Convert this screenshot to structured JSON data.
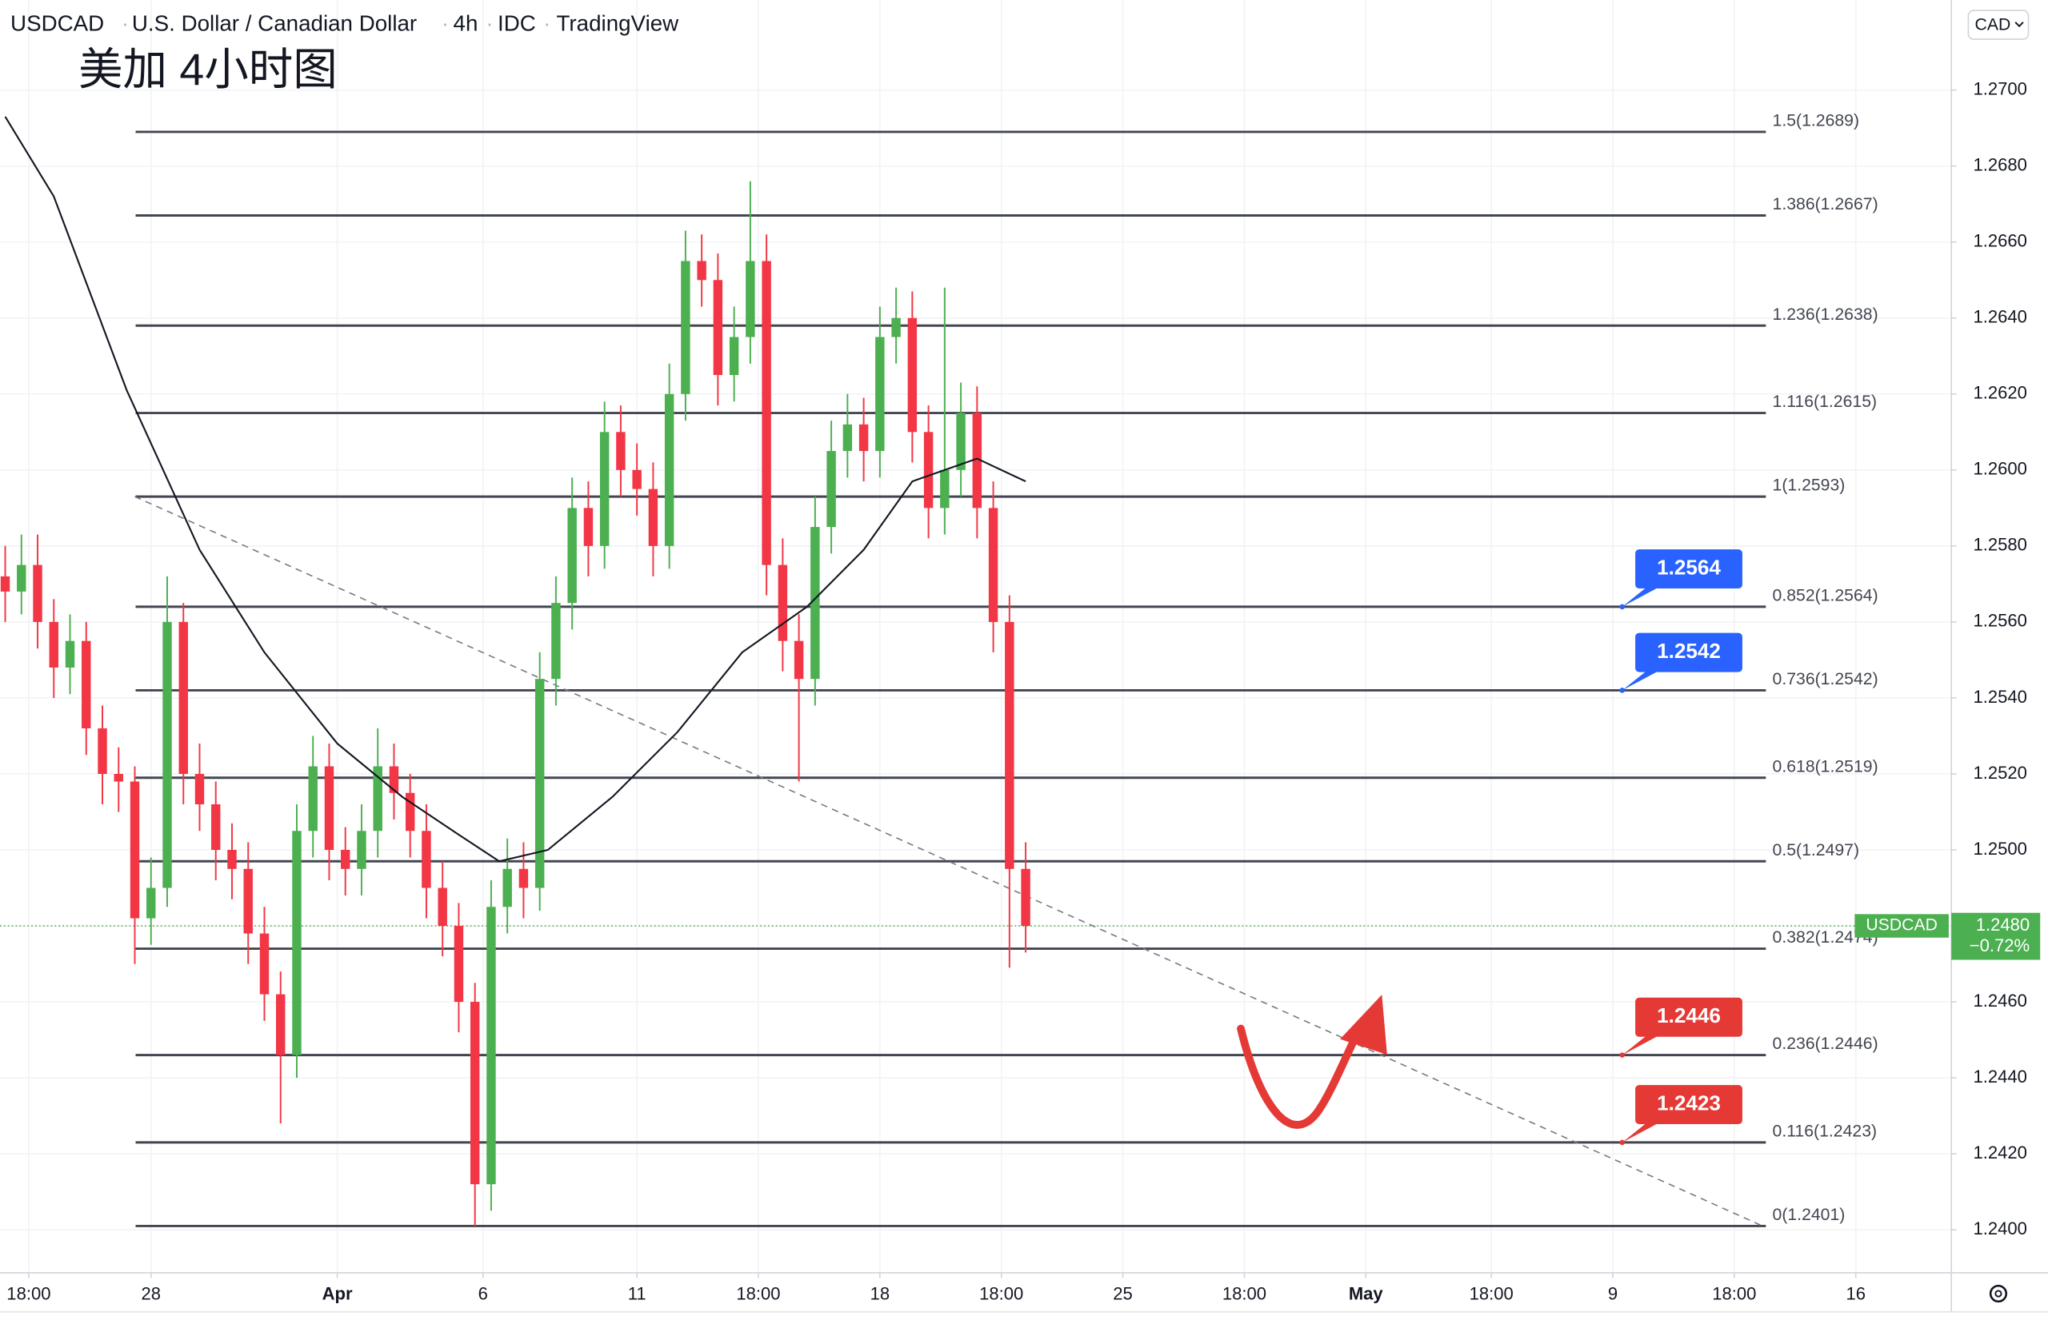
{
  "header": {
    "symbol": "USDCAD",
    "name": "U.S. Dollar / Canadian Dollar",
    "interval": "4h",
    "source": "IDC",
    "platform": "TradingView"
  },
  "annotation_title": "美加 4小时图",
  "currency": "CAD",
  "chart_data": {
    "type": "candlestick",
    "up_color": "#4caf50",
    "down_color": "#f23645",
    "x": [
      0,
      2,
      4,
      6,
      8,
      10,
      12,
      14,
      16,
      18,
      20,
      22,
      24,
      26,
      28,
      30,
      32,
      34,
      36,
      38,
      40,
      42,
      44,
      46,
      48,
      50,
      52,
      54,
      56,
      58,
      60,
      62,
      64,
      66,
      68,
      70,
      72,
      74,
      76,
      78,
      80,
      82,
      84,
      86,
      88,
      90,
      92,
      94,
      96,
      98,
      100,
      102,
      104,
      106,
      108,
      110,
      112,
      114,
      116,
      118,
      120,
      122,
      124,
      126
    ],
    "open": [
      1.2572,
      1.2568,
      1.2575,
      1.256,
      1.2548,
      1.2555,
      1.2532,
      1.252,
      1.2518,
      1.2482,
      1.249,
      1.256,
      1.252,
      1.2512,
      1.25,
      1.2495,
      1.2478,
      1.2462,
      1.2446,
      1.2505,
      1.2522,
      1.25,
      1.2495,
      1.2505,
      1.2522,
      1.2515,
      1.2505,
      1.249,
      1.248,
      1.246,
      1.2412,
      1.2485,
      1.2495,
      1.249,
      1.2545,
      1.2565,
      1.259,
      1.258,
      1.261,
      1.26,
      1.2595,
      1.258,
      1.262,
      1.2655,
      1.265,
      1.2625,
      1.2635,
      1.2655,
      1.2575,
      1.2555,
      1.2545,
      1.2585,
      1.2605,
      1.2612,
      1.2605,
      1.2635,
      1.264,
      1.261,
      1.259,
      1.26,
      1.2615,
      1.259,
      1.256,
      1.2495
    ],
    "high": [
      1.258,
      1.2583,
      1.2583,
      1.2566,
      1.2562,
      1.256,
      1.2538,
      1.2527,
      1.2522,
      1.2498,
      1.2572,
      1.2565,
      1.2528,
      1.2518,
      1.2507,
      1.2502,
      1.2485,
      1.2468,
      1.2512,
      1.253,
      1.2528,
      1.2506,
      1.2512,
      1.2532,
      1.2528,
      1.252,
      1.2512,
      1.2497,
      1.2486,
      1.2465,
      1.2492,
      1.2503,
      1.2502,
      1.2552,
      1.2572,
      1.2598,
      1.2597,
      1.2618,
      1.2617,
      1.2607,
      1.2602,
      1.2628,
      1.2663,
      1.2662,
      1.2657,
      1.2643,
      1.2676,
      1.2662,
      1.2582,
      1.2562,
      1.2593,
      1.2613,
      1.262,
      1.2619,
      1.2643,
      1.2648,
      1.2647,
      1.2617,
      1.2648,
      1.2623,
      1.2622,
      1.2597,
      1.2567,
      1.2502
    ],
    "low": [
      1.256,
      1.2562,
      1.2553,
      1.254,
      1.2541,
      1.2525,
      1.2512,
      1.251,
      1.247,
      1.2475,
      1.2485,
      1.2512,
      1.2505,
      1.2492,
      1.2487,
      1.247,
      1.2455,
      1.2428,
      1.244,
      1.2498,
      1.2492,
      1.2488,
      1.2488,
      1.2498,
      1.2508,
      1.2498,
      1.2482,
      1.2472,
      1.2452,
      1.2401,
      1.2405,
      1.2478,
      1.2482,
      1.2484,
      1.2538,
      1.2558,
      1.2572,
      1.2574,
      1.2593,
      1.2588,
      1.2572,
      1.2574,
      1.2613,
      1.2643,
      1.2617,
      1.2618,
      1.2628,
      1.2567,
      1.2547,
      1.2518,
      1.2538,
      1.2578,
      1.2598,
      1.2597,
      1.2598,
      1.2628,
      1.2602,
      1.2582,
      1.2583,
      1.2593,
      1.2582,
      1.2552,
      1.2469,
      1.2473
    ],
    "close": [
      1.2568,
      1.2575,
      1.256,
      1.2548,
      1.2555,
      1.2532,
      1.252,
      1.2518,
      1.2482,
      1.249,
      1.256,
      1.252,
      1.2512,
      1.25,
      1.2495,
      1.2478,
      1.2462,
      1.2446,
      1.2505,
      1.2522,
      1.25,
      1.2495,
      1.2505,
      1.2522,
      1.2515,
      1.2505,
      1.249,
      1.248,
      1.246,
      1.2412,
      1.2485,
      1.2495,
      1.249,
      1.2545,
      1.2565,
      1.259,
      1.258,
      1.261,
      1.26,
      1.2595,
      1.258,
      1.262,
      1.2655,
      1.265,
      1.2625,
      1.2635,
      1.2655,
      1.2575,
      1.2555,
      1.2545,
      1.2585,
      1.2605,
      1.2612,
      1.2605,
      1.2635,
      1.264,
      1.261,
      1.259,
      1.26,
      1.2615,
      1.259,
      1.256,
      1.2495,
      1.248
    ],
    "moving_average": {
      "color": "#131722",
      "x": [
        0,
        6,
        15,
        24,
        32,
        41,
        49,
        56,
        61,
        67,
        75,
        83,
        91,
        99,
        106,
        112,
        120,
        126
      ],
      "values": [
        1.2693,
        1.2672,
        1.2621,
        1.2579,
        1.2552,
        1.2528,
        1.2514,
        1.2504,
        1.2497,
        1.25,
        1.2514,
        1.2531,
        1.2552,
        1.2564,
        1.2579,
        1.2597,
        1.2603,
        1.2597
      ]
    },
    "xlim": [
      -0.645,
      240.3
    ],
    "xticks": [
      {
        "value": 2.9,
        "label": "18:00"
      },
      {
        "value": 18,
        "label": "28"
      },
      {
        "value": 41,
        "label": "Apr"
      },
      {
        "value": 59,
        "label": "6"
      },
      {
        "value": 78,
        "label": "11"
      },
      {
        "value": 93,
        "label": "18:00"
      },
      {
        "value": 108,
        "label": "18"
      },
      {
        "value": 123,
        "label": "18:00"
      },
      {
        "value": 138,
        "label": "25"
      },
      {
        "value": 153,
        "label": "18:00"
      },
      {
        "value": 168,
        "label": "May"
      },
      {
        "value": 183.5,
        "label": "18:00"
      },
      {
        "value": 198.5,
        "label": "9"
      },
      {
        "value": 213.5,
        "label": "18:00"
      },
      {
        "value": 228.5,
        "label": "16"
      }
    ],
    "ylim": [
      1.23887,
      1.27237
    ],
    "yticks": [
      {
        "value": 1.24,
        "label": "1.2400"
      },
      {
        "value": 1.242,
        "label": "1.2420"
      },
      {
        "value": 1.244,
        "label": "1.2440"
      },
      {
        "value": 1.246,
        "label": "1.2460"
      },
      {
        "value": 1.248,
        "label": "1.2480"
      },
      {
        "value": 1.25,
        "label": "1.2500"
      },
      {
        "value": 1.252,
        "label": "1.2520"
      },
      {
        "value": 1.254,
        "label": "1.2540"
      },
      {
        "value": 1.256,
        "label": "1.2560"
      },
      {
        "value": 1.258,
        "label": "1.2580"
      },
      {
        "value": 1.26,
        "label": "1.2600"
      },
      {
        "value": 1.262,
        "label": "1.2620"
      },
      {
        "value": 1.264,
        "label": "1.2640"
      },
      {
        "value": 1.266,
        "label": "1.2660"
      },
      {
        "value": 1.268,
        "label": "1.2680"
      },
      {
        "value": 1.27,
        "label": "1.2700"
      }
    ],
    "grid": true,
    "fib_color": "#434651",
    "fib_levels": [
      {
        "value": 1.2689,
        "label": "1.5(1.2689)"
      },
      {
        "value": 1.2667,
        "label": "1.386(1.2667)"
      },
      {
        "value": 1.2638,
        "label": "1.236(1.2638)"
      },
      {
        "value": 1.2615,
        "label": "1.116(1.2615)"
      },
      {
        "value": 1.2593,
        "label": "1(1.2593)"
      },
      {
        "value": 1.2564,
        "label": "0.852(1.2564)"
      },
      {
        "value": 1.2542,
        "label": "0.736(1.2542)"
      },
      {
        "value": 1.2519,
        "label": "0.618(1.2519)"
      },
      {
        "value": 1.2497,
        "label": "0.5(1.2497)"
      },
      {
        "value": 1.2474,
        "label": "0.382(1.2474)"
      },
      {
        "value": 1.2446,
        "label": "0.236(1.2446)"
      },
      {
        "value": 1.2423,
        "label": "0.116(1.2423)"
      },
      {
        "value": 1.2401,
        "label": "0(1.2401)"
      }
    ],
    "trendline": {
      "x": [
        16,
        217
      ],
      "values": [
        1.2593,
        1.2401
      ]
    },
    "price_callouts": [
      {
        "value": 1.2564,
        "color": "#2962ff"
      },
      {
        "value": 1.2542,
        "color": "#2962ff"
      },
      {
        "value": 1.2446,
        "color": "#e53935"
      },
      {
        "value": 1.2423,
        "color": "#e53935"
      }
    ],
    "last_price": {
      "value": 1.248,
      "label": "1.2480"
    },
    "change": {
      "value": -0.72,
      "label": "−0.72%"
    }
  }
}
